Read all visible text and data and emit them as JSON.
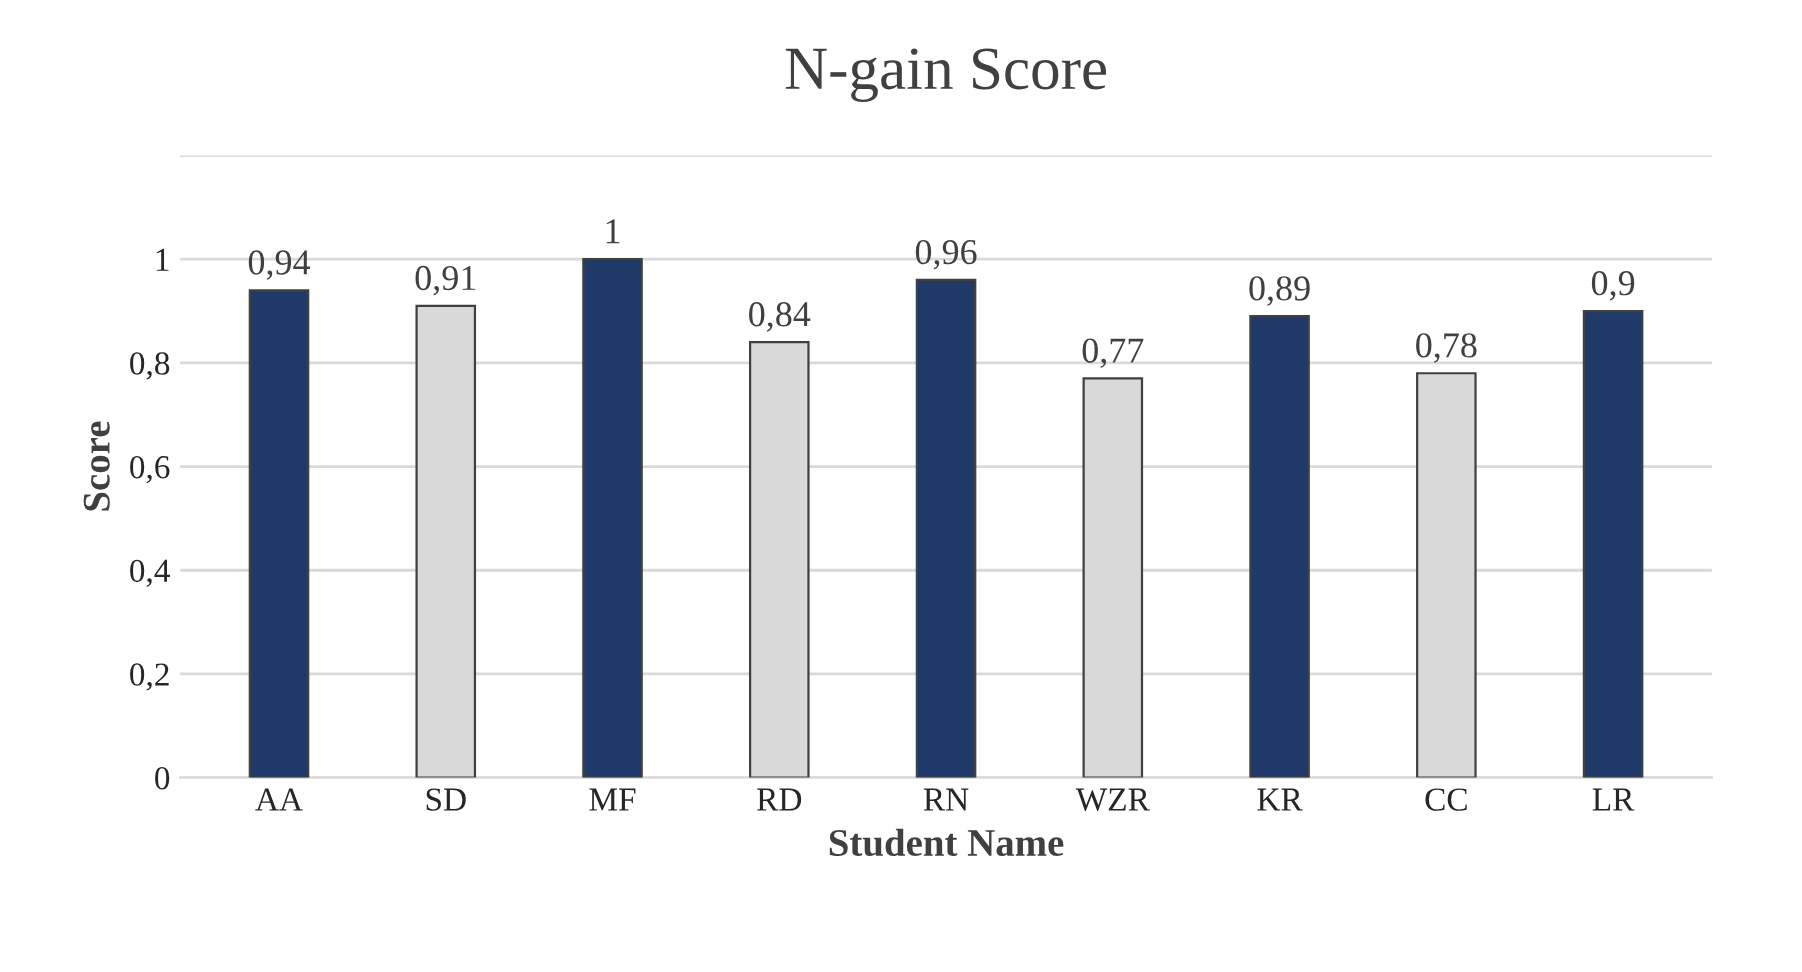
{
  "chart_data": {
    "type": "bar",
    "title": "N-gain Score",
    "xlabel": "Student Name",
    "ylabel": "Score",
    "categories": [
      "AA",
      "SD",
      "MF",
      "RD",
      "RN",
      "WZR",
      "KR",
      "CC",
      "LR"
    ],
    "values": [
      0.94,
      0.91,
      1,
      0.84,
      0.96,
      0.77,
      0.89,
      0.78,
      0.9
    ],
    "value_labels": [
      "0,94",
      "0,91",
      "1",
      "0,84",
      "0,96",
      "0,77",
      "0,89",
      "0,78",
      "0,9"
    ],
    "colors": [
      "#1f3a68",
      "#d9d9d9",
      "#1f3a68",
      "#d9d9d9",
      "#1f3a68",
      "#d9d9d9",
      "#1f3a68",
      "#d9d9d9",
      "#1f3a68"
    ],
    "ylim": [
      0,
      1.2
    ],
    "yticks": [
      0,
      {
        "value": 0.2,
        "label": "0,2"
      },
      {
        "value": 0.4,
        "label": "0,4"
      },
      {
        "value": 0.6,
        "label": "0,6"
      },
      {
        "value": 0.8,
        "label": "0,8"
      },
      1,
      {
        "value": 1.2,
        "label": null
      }
    ],
    "grid": "y",
    "legend": false
  }
}
